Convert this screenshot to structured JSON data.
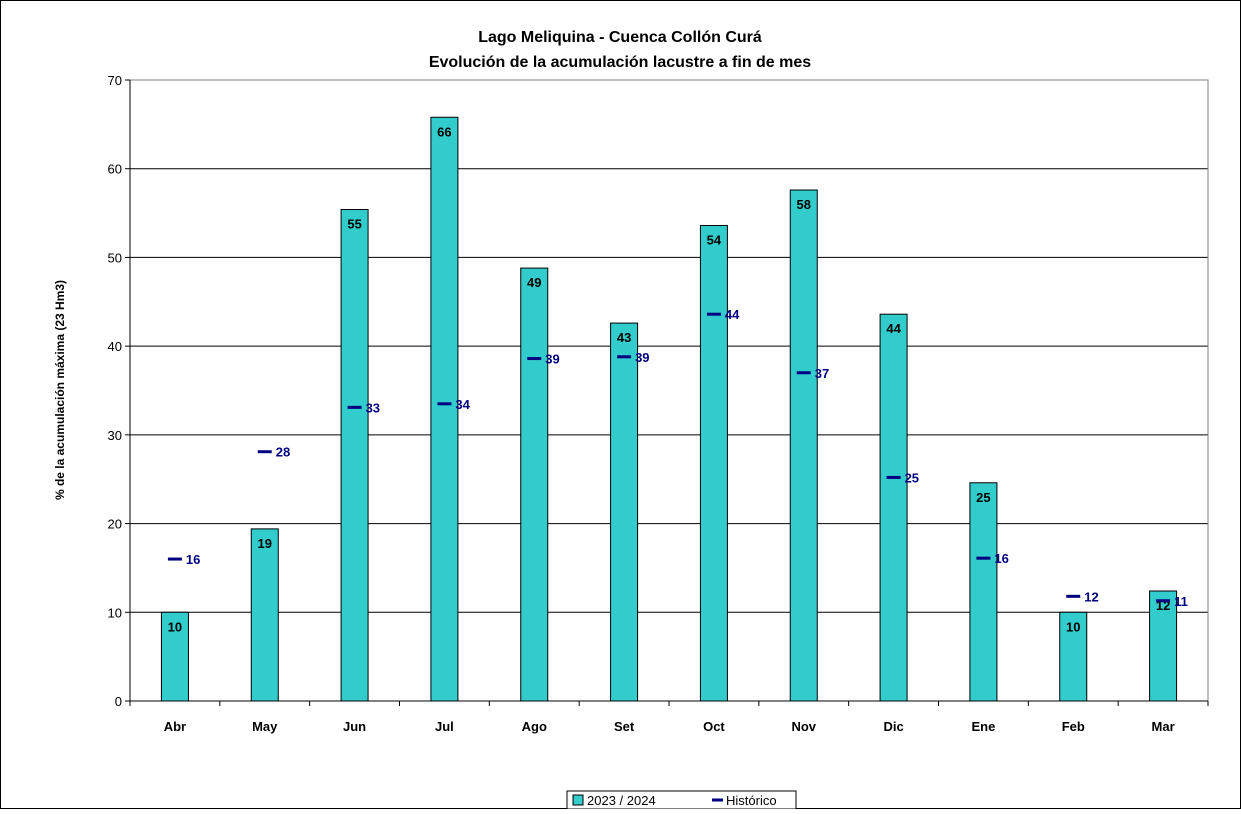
{
  "chart_data": {
    "type": "bar",
    "title_lines": [
      "Lago Meliquina - Cuenca Collón Curá",
      "Evolución de la acumulación lacustre a fin de mes"
    ],
    "ylabel": "% de la acumulación máxima (23 Hm3)",
    "xlabel": "",
    "ylim": [
      0,
      70
    ],
    "yticks": [
      0,
      10,
      20,
      30,
      40,
      50,
      60,
      70
    ],
    "grid": true,
    "legend_position": "bottom-center",
    "categories": [
      "Abr",
      "May",
      "Jun",
      "Jul",
      "Ago",
      "Set",
      "Oct",
      "Nov",
      "Dic",
      "Ene",
      "Feb",
      "Mar"
    ],
    "series": [
      {
        "name": "2023 / 2024",
        "mark": "bar",
        "color": "#33CCCC",
        "values": [
          10,
          19.4,
          55.4,
          65.8,
          48.8,
          42.6,
          53.6,
          57.6,
          43.6,
          24.6,
          10,
          12.4
        ],
        "labels": [
          "10",
          "19",
          "55",
          "66",
          "49",
          "43",
          "54",
          "58",
          "44",
          "25",
          "10",
          "12"
        ]
      },
      {
        "name": "Histórico",
        "mark": "dash",
        "color": "#000080",
        "values": [
          16,
          28.1,
          33.1,
          33.5,
          38.6,
          38.8,
          43.6,
          37,
          25.2,
          16.1,
          11.8,
          11.3
        ],
        "labels": [
          "16",
          "28",
          "33",
          "34",
          "39",
          "39",
          "44",
          "37",
          "25",
          "16",
          "12",
          "11"
        ]
      }
    ]
  }
}
